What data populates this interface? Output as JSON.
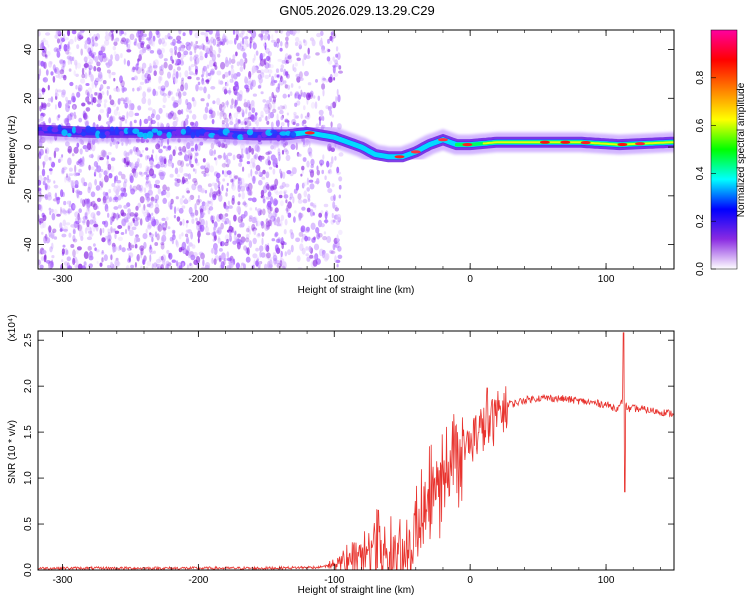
{
  "title": "GN05.2026.029.13.29.C29",
  "chart_data": [
    {
      "type": "heatmap",
      "xlabel": "Height of straight line (km)",
      "ylabel": "Frequency (Hz)",
      "xlim": [
        -318,
        150
      ],
      "ylim": [
        -50,
        48
      ],
      "xticks": [
        -300,
        -200,
        -100,
        0,
        100
      ],
      "yticks": [
        -40,
        -20,
        0,
        20,
        40
      ],
      "ridge": {
        "x": [
          -318,
          -280,
          -240,
          -200,
          -160,
          -135,
          -120,
          -100,
          -90,
          -80,
          -70,
          -60,
          -50,
          -40,
          -30,
          -20,
          -10,
          0,
          20,
          50,
          80,
          110,
          150
        ],
        "freq": [
          7,
          6,
          6,
          6,
          5,
          5,
          6,
          4,
          2,
          0,
          -3,
          -4,
          -4,
          -2,
          1,
          3,
          1,
          1,
          2,
          2,
          2,
          1,
          2
        ]
      },
      "colorbar": {
        "label": "Normalized spectral amplitude",
        "ticks": [
          0.0,
          0.2,
          0.4,
          0.6,
          0.8
        ],
        "range": [
          0,
          1
        ],
        "colors": [
          "#ffffff",
          "#8a2be2",
          "#0000ff",
          "#00ffff",
          "#00ff00",
          "#ffff00",
          "#ff8000",
          "#ff0000",
          "#ff00a0"
        ]
      }
    },
    {
      "type": "line",
      "xlabel": "Height of straight line (km)",
      "ylabel": "SNR (10 * v/v)",
      "multiplier": "(x10⁴)",
      "xlim": [
        -318,
        150
      ],
      "ylim": [
        0,
        2.6
      ],
      "xticks": [
        -300,
        -200,
        -100,
        0,
        100
      ],
      "yticks": [
        0.0,
        0.5,
        1.0,
        1.5,
        2.0,
        2.5
      ],
      "x": [
        -318,
        -250,
        -200,
        -150,
        -110,
        -100,
        -90,
        -80,
        -75,
        -70,
        -65,
        -60,
        -55,
        -50,
        -45,
        -40,
        -35,
        -30,
        -25,
        -20,
        -15,
        -10,
        -5,
        0,
        5,
        10,
        15,
        20,
        25,
        30,
        40,
        50,
        60,
        70,
        80,
        90,
        100,
        105,
        110,
        113,
        115,
        118,
        120,
        130,
        140,
        150
      ],
      "y": [
        0.02,
        0.02,
        0.02,
        0.02,
        0.03,
        0.08,
        0.15,
        0.2,
        0.3,
        0.35,
        0.2,
        0.15,
        0.2,
        0.25,
        0.3,
        0.55,
        0.7,
        0.85,
        0.95,
        1.1,
        1.25,
        1.3,
        1.35,
        1.45,
        1.55,
        1.6,
        1.65,
        1.7,
        1.75,
        1.8,
        1.85,
        1.87,
        1.87,
        1.86,
        1.84,
        1.82,
        1.8,
        1.77,
        1.76,
        1.9,
        1.78,
        1.74,
        1.76,
        1.74,
        1.72,
        1.7
      ],
      "series_color": "#e8332e"
    }
  ]
}
